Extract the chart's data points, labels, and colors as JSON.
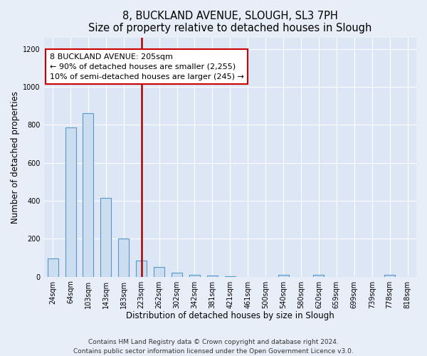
{
  "title": "8, BUCKLAND AVENUE, SLOUGH, SL3 7PH",
  "subtitle": "Size of property relative to detached houses in Slough",
  "xlabel": "Distribution of detached houses by size in Slough",
  "ylabel": "Number of detached properties",
  "categories": [
    "24sqm",
    "64sqm",
    "103sqm",
    "143sqm",
    "183sqm",
    "223sqm",
    "262sqm",
    "302sqm",
    "342sqm",
    "381sqm",
    "421sqm",
    "461sqm",
    "500sqm",
    "540sqm",
    "580sqm",
    "620sqm",
    "659sqm",
    "699sqm",
    "739sqm",
    "778sqm",
    "818sqm"
  ],
  "values": [
    95,
    785,
    860,
    415,
    200,
    85,
    52,
    20,
    8,
    5,
    3,
    0,
    0,
    10,
    0,
    10,
    0,
    0,
    0,
    10,
    0
  ],
  "bar_color": "#ccddf0",
  "bar_edge_color": "#5599cc",
  "ylim": [
    0,
    1260
  ],
  "yticks": [
    0,
    200,
    400,
    600,
    800,
    1000,
    1200
  ],
  "annotation_title": "8 BUCKLAND AVENUE: 205sqm",
  "annotation_line1": "← 90% of detached houses are smaller (2,255)",
  "annotation_line2": "10% of semi-detached houses are larger (245) →",
  "annotation_box_color": "#ffffff",
  "annotation_box_edge": "#cc0000",
  "vline_color": "#aa0000",
  "footer_line1": "Contains HM Land Registry data © Crown copyright and database right 2024.",
  "footer_line2": "Contains public sector information licensed under the Open Government Licence v3.0.",
  "background_color": "#e8eef8",
  "plot_bg_color": "#dce6f5",
  "grid_color": "#ffffff",
  "title_fontsize": 10.5,
  "axis_label_fontsize": 8.5,
  "tick_fontsize": 7,
  "annotation_fontsize": 8,
  "footer_fontsize": 6.5,
  "vline_x_index": 5.0,
  "bar_width": 0.6
}
